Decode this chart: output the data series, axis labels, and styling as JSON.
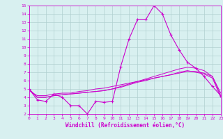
{
  "hours": [
    0,
    1,
    2,
    3,
    4,
    5,
    6,
    7,
    8,
    9,
    10,
    11,
    12,
    13,
    14,
    15,
    16,
    17,
    18,
    19,
    20,
    21,
    22,
    23
  ],
  "windchill": [
    5.0,
    3.7,
    3.5,
    4.4,
    4.0,
    3.0,
    3.0,
    2.0,
    3.5,
    3.4,
    3.5,
    7.7,
    11.0,
    13.3,
    13.3,
    15.0,
    14.0,
    11.5,
    9.7,
    8.2,
    7.5,
    6.5,
    5.3,
    4.2
  ],
  "line2": [
    5.0,
    4.0,
    4.0,
    4.2,
    4.3,
    4.4,
    4.5,
    4.6,
    4.7,
    4.8,
    5.0,
    5.3,
    5.6,
    5.9,
    6.2,
    6.5,
    6.8,
    7.1,
    7.4,
    7.6,
    7.5,
    7.2,
    6.5,
    4.2
  ],
  "line3": [
    5.0,
    4.0,
    4.0,
    4.2,
    4.3,
    4.4,
    4.5,
    4.6,
    4.7,
    4.8,
    5.0,
    5.2,
    5.5,
    5.8,
    6.0,
    6.3,
    6.5,
    6.7,
    7.0,
    7.2,
    7.0,
    6.8,
    6.3,
    4.0
  ],
  "line4": [
    4.8,
    4.2,
    4.2,
    4.4,
    4.5,
    4.5,
    4.7,
    4.8,
    5.0,
    5.1,
    5.3,
    5.5,
    5.7,
    5.9,
    6.1,
    6.3,
    6.5,
    6.7,
    6.9,
    7.1,
    7.1,
    6.9,
    6.5,
    4.5
  ],
  "line_color": "#cc00cc",
  "bg_color": "#d8f0f0",
  "grid_color": "#b0d0d0",
  "xlabel": "Windchill (Refroidissement éolien,°C)",
  "ylim": [
    2,
    15
  ],
  "xlim": [
    0,
    23
  ]
}
